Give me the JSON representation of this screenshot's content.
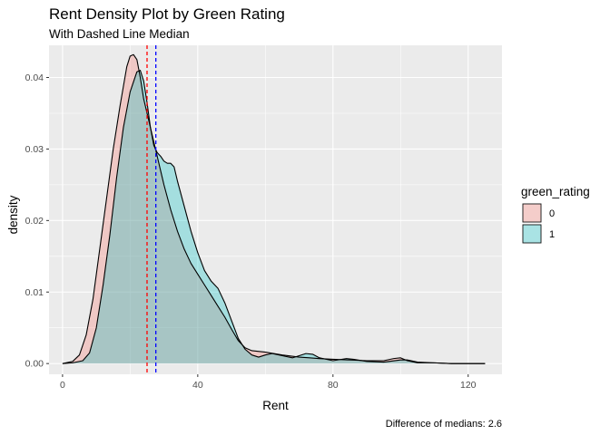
{
  "chart_data": {
    "type": "area",
    "title": "Rent Density Plot by Green Rating",
    "subtitle": "With Dashed Line Median",
    "xlabel": "Rent",
    "ylabel": "density",
    "caption": "Difference of medians: 2.6",
    "xlim": [
      -4,
      130
    ],
    "ylim": [
      -0.0015,
      0.0445
    ],
    "x_ticks": [
      0,
      40,
      80,
      120
    ],
    "x_tick_labels": [
      "0",
      "40",
      "80",
      "120"
    ],
    "y_ticks": [
      0,
      0.01,
      0.02,
      0.03,
      0.04
    ],
    "y_tick_labels": [
      "0.00",
      "0.01",
      "0.02",
      "0.03",
      "0.04"
    ],
    "grid": true,
    "legend": {
      "title": "green_rating",
      "position": "right"
    },
    "series": [
      {
        "name": "0",
        "color": "#F8766D",
        "points": [
          [
            0,
            0
          ],
          [
            3,
            0.0003
          ],
          [
            5,
            0.0012
          ],
          [
            7,
            0.004
          ],
          [
            9,
            0.009
          ],
          [
            11,
            0.016
          ],
          [
            13,
            0.023
          ],
          [
            15,
            0.03
          ],
          [
            17,
            0.036
          ],
          [
            19,
            0.0415
          ],
          [
            20,
            0.043
          ],
          [
            21,
            0.0432
          ],
          [
            22,
            0.0425
          ],
          [
            23,
            0.04
          ],
          [
            24,
            0.037
          ],
          [
            26,
            0.033
          ],
          [
            28,
            0.029
          ],
          [
            30,
            0.025
          ],
          [
            32,
            0.0215
          ],
          [
            34,
            0.0185
          ],
          [
            36,
            0.016
          ],
          [
            38,
            0.014
          ],
          [
            40,
            0.0125
          ],
          [
            42,
            0.011
          ],
          [
            44,
            0.0095
          ],
          [
            46,
            0.008
          ],
          [
            48,
            0.0065
          ],
          [
            50,
            0.0048
          ],
          [
            52,
            0.0032
          ],
          [
            54,
            0.0022
          ],
          [
            56,
            0.0018
          ],
          [
            60,
            0.0016
          ],
          [
            65,
            0.0012
          ],
          [
            70,
            0.0009
          ],
          [
            73,
            0.0008
          ],
          [
            76,
            0.0007
          ],
          [
            80,
            0.0006
          ],
          [
            85,
            0.0005
          ],
          [
            90,
            0.0004
          ],
          [
            95,
            0.0004
          ],
          [
            98,
            0.0007
          ],
          [
            100,
            0.0008
          ],
          [
            102,
            0.0004
          ],
          [
            105,
            0.0001
          ],
          [
            110,
            0.0001
          ],
          [
            115,
            0
          ],
          [
            125,
            0
          ]
        ]
      },
      {
        "name": "1",
        "color": "#00BFC4",
        "points": [
          [
            0,
            0
          ],
          [
            3,
            0.0001
          ],
          [
            6,
            0.0004
          ],
          [
            8,
            0.0015
          ],
          [
            10,
            0.005
          ],
          [
            12,
            0.011
          ],
          [
            14,
            0.018
          ],
          [
            16,
            0.026
          ],
          [
            18,
            0.033
          ],
          [
            20,
            0.038
          ],
          [
            22,
            0.0408
          ],
          [
            23,
            0.041
          ],
          [
            24,
            0.0395
          ],
          [
            25,
            0.0365
          ],
          [
            26,
            0.033
          ],
          [
            27,
            0.0305
          ],
          [
            28,
            0.0295
          ],
          [
            29,
            0.029
          ],
          [
            30,
            0.0283
          ],
          [
            31,
            0.028
          ],
          [
            32,
            0.028
          ],
          [
            33,
            0.0275
          ],
          [
            34,
            0.0255
          ],
          [
            36,
            0.022
          ],
          [
            38,
            0.0185
          ],
          [
            40,
            0.0155
          ],
          [
            42,
            0.013
          ],
          [
            44,
            0.0115
          ],
          [
            46,
            0.0105
          ],
          [
            48,
            0.0085
          ],
          [
            50,
            0.006
          ],
          [
            52,
            0.0035
          ],
          [
            54,
            0.002
          ],
          [
            56,
            0.0012
          ],
          [
            58,
            0.0009
          ],
          [
            60,
            0.0012
          ],
          [
            62,
            0.0014
          ],
          [
            65,
            0.0011
          ],
          [
            68,
            0.0008
          ],
          [
            70,
            0.0011
          ],
          [
            72,
            0.0014
          ],
          [
            74,
            0.0013
          ],
          [
            76,
            0.0008
          ],
          [
            80,
            0.0004
          ],
          [
            84,
            0.0007
          ],
          [
            86,
            0.0006
          ],
          [
            90,
            0.0003
          ],
          [
            95,
            0.0002
          ],
          [
            100,
            0.0005
          ],
          [
            102,
            0.0005
          ],
          [
            105,
            0.0002
          ],
          [
            110,
            0.0001
          ],
          [
            115,
            0
          ],
          [
            125,
            0
          ]
        ]
      }
    ],
    "medians": [
      {
        "group": "0",
        "value": 25,
        "color": "#FF0000",
        "linetype": "dashed"
      },
      {
        "group": "1",
        "value": 27.6,
        "color": "#0000FF",
        "linetype": "dashed"
      }
    ]
  }
}
